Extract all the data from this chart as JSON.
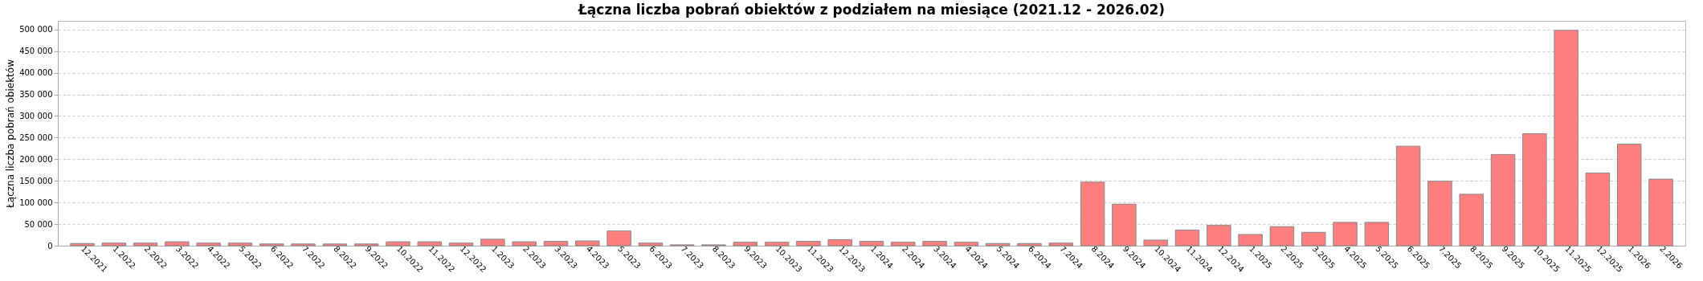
{
  "chart_data": {
    "type": "bar",
    "title": "Łączna liczba pobrań obiektów z podziałem na miesiące (2021.12 - 2026.02)",
    "ylabel": "Łączna liczba pobrań obiektów",
    "categories": [
      "12.2021",
      "1.2022",
      "2.2022",
      "3.2022",
      "4.2022",
      "5.2022",
      "6.2022",
      "7.2022",
      "8.2022",
      "9.2022",
      "10.2022",
      "11.2022",
      "12.2022",
      "1.2023",
      "2.2023",
      "3.2023",
      "4.2023",
      "5.2023",
      "6.2023",
      "7.2023",
      "8.2023",
      "9.2023",
      "10.2023",
      "11.2023",
      "12.2023",
      "1.2024",
      "2.2024",
      "3.2024",
      "4.2024",
      "5.2024",
      "6.2024",
      "7.2024",
      "8.2024",
      "9.2024",
      "10.2024",
      "11.2024",
      "12.2024",
      "1.2025",
      "2.2025",
      "3.2025",
      "4.2025",
      "5.2025",
      "6.2025",
      "7.2025",
      "8.2025",
      "9.2025",
      "10.2025",
      "11.2025",
      "12.2025",
      "1.2026",
      "2.2026"
    ],
    "values": [
      5000,
      6000,
      6000,
      9000,
      6000,
      6000,
      4000,
      4000,
      4000,
      4000,
      9000,
      9000,
      6000,
      15000,
      9000,
      10000,
      11000,
      34000,
      6000,
      2000,
      2000,
      8000,
      8000,
      10000,
      14000,
      10000,
      8000,
      10000,
      8000,
      5000,
      5000,
      6000,
      147000,
      96000,
      13000,
      36000,
      47000,
      26000,
      44000,
      31000,
      54000,
      54000,
      230000,
      149000,
      119000,
      211000,
      259000,
      498000,
      168000,
      235000,
      154000
    ],
    "color": "#ff7f7f",
    "ylim": [
      0,
      520000
    ],
    "yticks": [
      {
        "value": 0,
        "label": "0"
      },
      {
        "value": 50000,
        "label": "50 000"
      },
      {
        "value": 100000,
        "label": "100 000"
      },
      {
        "value": 150000,
        "label": "150 000"
      },
      {
        "value": 200000,
        "label": "200 000"
      },
      {
        "value": 250000,
        "label": "250 000"
      },
      {
        "value": 300000,
        "label": "300 000"
      },
      {
        "value": 350000,
        "label": "350 000"
      },
      {
        "value": 400000,
        "label": "400 000"
      },
      {
        "value": 450000,
        "label": "450 000"
      },
      {
        "value": 500000,
        "label": "500 000"
      }
    ],
    "grid": "y"
  }
}
